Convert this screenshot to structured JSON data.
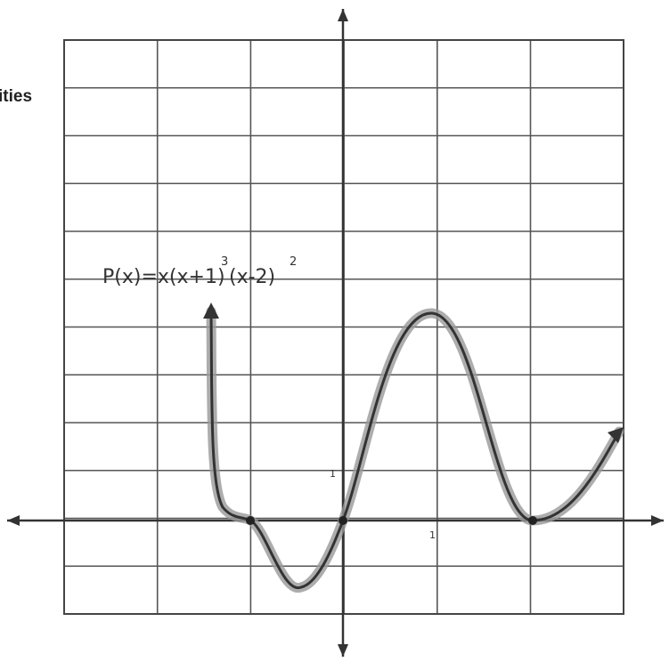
{
  "header": {
    "title_fragment": "ities"
  },
  "graph": {
    "equation": {
      "base1": "P(x)=x(x+1)",
      "exp1": "3",
      "base2": "(x-2)",
      "exp2": "2"
    },
    "y_unit_label": "1",
    "x_unit_label": "1"
  }
}
